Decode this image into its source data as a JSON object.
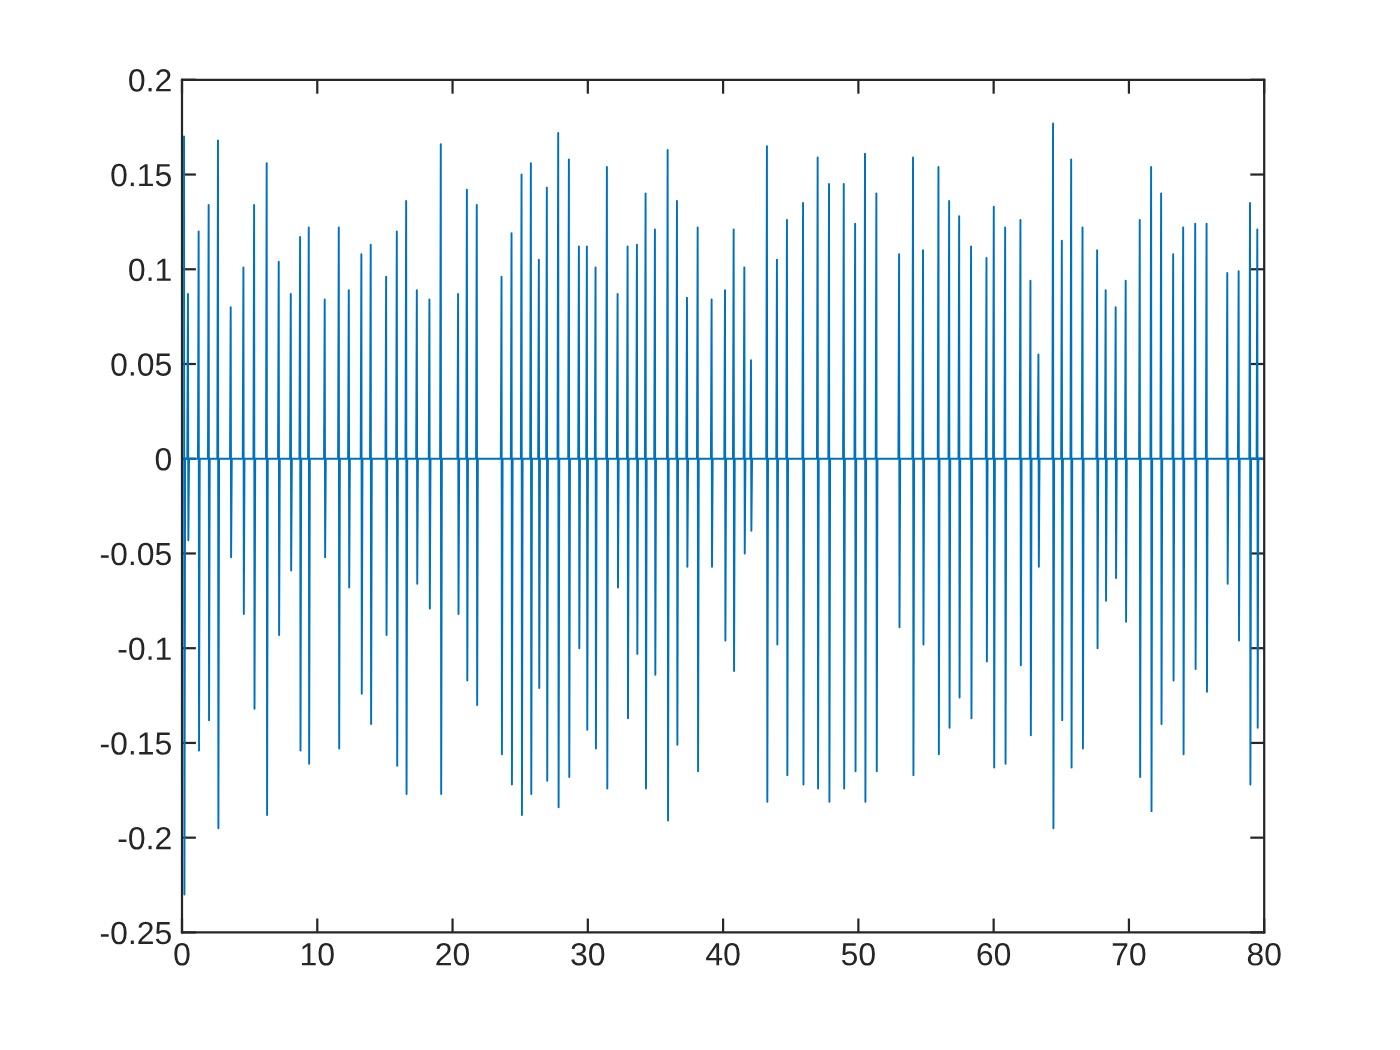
{
  "chart_data": {
    "type": "line",
    "xlim": [
      0,
      80
    ],
    "ylim": [
      -0.25,
      0.2
    ],
    "xticks": [
      0,
      10,
      20,
      30,
      40,
      50,
      60,
      70,
      80
    ],
    "yticks": [
      -0.25,
      -0.2,
      -0.15,
      -0.1,
      -0.05,
      0,
      0.05,
      0.1,
      0.15,
      0.2
    ],
    "grid": false,
    "marker": "none",
    "line_style": "solid",
    "series": [
      {
        "color": "#0072bd",
        "x": [
          0.15,
          0.18,
          0.23,
          0.39,
          0.44,
          0.47,
          0.52,
          1.18,
          1.23,
          1.26,
          1.31,
          1.92,
          1.97,
          2.0,
          2.05,
          2.61,
          2.66,
          2.69,
          2.74,
          3.55,
          3.6,
          3.63,
          3.68,
          4.49,
          4.54,
          4.57,
          4.62,
          5.28,
          5.33,
          5.36,
          5.41,
          6.21,
          6.26,
          6.29,
          6.34,
          7.1,
          7.15,
          7.18,
          7.23,
          7.99,
          8.04,
          8.07,
          8.12,
          8.68,
          8.73,
          8.76,
          8.81,
          9.32,
          9.37,
          9.4,
          9.45,
          10.5,
          10.55,
          10.58,
          10.63,
          11.54,
          11.59,
          11.62,
          11.67,
          12.28,
          12.33,
          12.36,
          12.41,
          13.21,
          13.26,
          13.29,
          13.34,
          13.9,
          13.95,
          13.98,
          14.03,
          15.04,
          15.09,
          15.12,
          15.17,
          15.83,
          15.88,
          15.91,
          15.96,
          16.52,
          16.57,
          16.6,
          16.65,
          17.31,
          17.36,
          17.39,
          17.44,
          18.24,
          18.29,
          18.32,
          18.37,
          19.08,
          19.13,
          19.16,
          19.21,
          20.36,
          20.41,
          20.44,
          20.49,
          21.01,
          21.06,
          21.09,
          21.14,
          21.74,
          21.79,
          21.82,
          21.87,
          23.57,
          23.62,
          23.65,
          23.7,
          24.31,
          24.36,
          24.39,
          24.44,
          25.05,
          25.1,
          25.13,
          25.18,
          25.74,
          25.79,
          25.82,
          25.87,
          26.33,
          26.38,
          26.41,
          26.46,
          26.92,
          26.97,
          27.0,
          27.05,
          27.76,
          27.81,
          27.84,
          27.89,
          28.55,
          28.6,
          28.63,
          28.68,
          29.29,
          29.34,
          29.37,
          29.42,
          29.88,
          29.93,
          29.96,
          30.01,
          30.52,
          30.57,
          30.6,
          30.65,
          31.36,
          31.41,
          31.44,
          31.49,
          32.15,
          32.2,
          32.23,
          32.28,
          32.89,
          32.94,
          32.97,
          33.02,
          33.58,
          33.63,
          33.66,
          33.71,
          34.22,
          34.27,
          34.3,
          34.35,
          34.91,
          34.96,
          34.99,
          35.04,
          35.85,
          35.9,
          35.93,
          35.98,
          36.54,
          36.59,
          36.62,
          36.67,
          37.28,
          37.33,
          37.36,
          37.41,
          38.07,
          38.12,
          38.15,
          38.2,
          39.1,
          39.15,
          39.18,
          39.23,
          40.09,
          40.14,
          40.17,
          40.22,
          40.73,
          40.78,
          40.81,
          40.86,
          41.52,
          41.57,
          41.6,
          41.65,
          42.01,
          42.06,
          42.09,
          42.14,
          43.19,
          43.24,
          43.27,
          43.32,
          43.93,
          43.98,
          44.01,
          44.06,
          44.67,
          44.72,
          44.75,
          44.8,
          45.86,
          45.91,
          45.94,
          45.99,
          46.94,
          46.99,
          47.02,
          47.07,
          47.78,
          47.83,
          47.86,
          47.91,
          48.87,
          48.92,
          48.95,
          49.0,
          49.71,
          49.76,
          49.79,
          49.84,
          50.44,
          50.49,
          50.52,
          50.57,
          51.28,
          51.33,
          51.36,
          51.41,
          52.96,
          53.01,
          53.04,
          53.09,
          53.99,
          54.04,
          54.07,
          54.12,
          54.73,
          54.78,
          54.81,
          54.86,
          55.87,
          55.92,
          55.95,
          56.0,
          56.66,
          56.71,
          56.74,
          56.79,
          57.4,
          57.45,
          57.48,
          57.53,
          58.28,
          58.33,
          58.36,
          58.41,
          59.42,
          59.47,
          59.5,
          59.55,
          59.96,
          60.01,
          60.04,
          60.09,
          60.8,
          60.85,
          60.88,
          60.93,
          61.93,
          61.98,
          62.01,
          62.06,
          62.67,
          62.72,
          62.75,
          62.8,
          63.26,
          63.31,
          63.34,
          63.39,
          64.34,
          64.39,
          64.42,
          64.47,
          64.99,
          65.04,
          65.07,
          65.12,
          65.68,
          65.73,
          65.76,
          65.81,
          66.52,
          66.57,
          66.6,
          66.65,
          67.6,
          67.65,
          67.68,
          67.73,
          68.23,
          68.28,
          68.31,
          68.36,
          68.97,
          69.02,
          69.05,
          69.1,
          69.71,
          69.76,
          69.79,
          69.84,
          70.75,
          70.8,
          70.83,
          70.88,
          71.59,
          71.64,
          71.67,
          71.72,
          72.33,
          72.38,
          72.41,
          72.46,
          73.22,
          73.27,
          73.3,
          73.35,
          73.96,
          74.01,
          74.04,
          74.09,
          74.85,
          74.9,
          74.93,
          74.98,
          75.69,
          75.74,
          75.77,
          75.82,
          77.22,
          77.27,
          77.3,
          77.35,
          78.06,
          78.11,
          78.14,
          78.19,
          78.9,
          78.95,
          78.98,
          79.03,
          79.44,
          79.49,
          79.52,
          79.57,
          80
        ],
        "values": [
          0.17,
          -0.23,
          0,
          0,
          0.087,
          -0.043,
          0,
          0,
          0.12,
          -0.154,
          0,
          0,
          0.134,
          -0.138,
          0,
          0,
          0.168,
          -0.195,
          0,
          0,
          0.08,
          -0.052,
          0,
          0,
          0.101,
          -0.082,
          0,
          0,
          0.134,
          -0.132,
          0,
          0,
          0.156,
          -0.188,
          0,
          0,
          0.104,
          -0.093,
          0,
          0,
          0.087,
          -0.059,
          0,
          0,
          0.117,
          -0.154,
          0,
          0,
          0.122,
          -0.161,
          0,
          0,
          0.084,
          -0.052,
          0,
          0,
          0.122,
          -0.153,
          0,
          0,
          0.089,
          -0.068,
          0,
          0,
          0.108,
          -0.124,
          0,
          0,
          0.113,
          -0.14,
          0,
          0,
          0.096,
          -0.093,
          0,
          0,
          0.12,
          -0.162,
          0,
          0,
          0.136,
          -0.177,
          0,
          0,
          0.089,
          -0.066,
          0,
          0,
          0.084,
          -0.079,
          0,
          0,
          0.166,
          -0.177,
          0,
          0,
          0.087,
          -0.082,
          0,
          0,
          0.142,
          -0.117,
          0,
          0,
          0.134,
          -0.13,
          0,
          0,
          0.096,
          -0.156,
          0,
          0,
          0.119,
          -0.172,
          0,
          0,
          0.15,
          -0.188,
          0,
          0,
          0.156,
          -0.177,
          0,
          0,
          0.105,
          -0.121,
          0,
          0,
          0.143,
          -0.17,
          0,
          0,
          0.172,
          -0.184,
          0,
          0,
          0.158,
          -0.168,
          0,
          0,
          0.112,
          -0.1,
          0,
          0,
          0.112,
          -0.143,
          0,
          0,
          0.101,
          -0.153,
          0,
          0,
          0.154,
          -0.174,
          0,
          0,
          0.087,
          -0.068,
          0,
          0,
          0.112,
          -0.137,
          0,
          0,
          0.113,
          -0.103,
          0,
          0,
          0.14,
          -0.174,
          0,
          0,
          0.121,
          -0.114,
          0,
          0,
          0.163,
          -0.191,
          0,
          0,
          0.136,
          -0.151,
          0,
          0,
          0.085,
          -0.057,
          0,
          0,
          0.122,
          -0.165,
          0,
          0,
          0.084,
          -0.057,
          0,
          0,
          0.089,
          -0.096,
          0,
          0,
          0.121,
          -0.112,
          0,
          0,
          0.101,
          -0.05,
          0,
          0,
          0.052,
          -0.038,
          0,
          0,
          0.165,
          -0.181,
          0,
          0,
          0.105,
          -0.098,
          0,
          0,
          0.126,
          -0.167,
          0,
          0,
          0.135,
          -0.172,
          0,
          0,
          0.159,
          -0.174,
          0,
          0,
          0.145,
          -0.181,
          0,
          0,
          0.145,
          -0.174,
          0,
          0,
          0.124,
          -0.165,
          0,
          0,
          0.161,
          -0.181,
          0,
          0,
          0.14,
          -0.165,
          0,
          0,
          0.108,
          -0.089,
          0,
          0,
          0.159,
          -0.167,
          0,
          0,
          0.11,
          -0.098,
          0,
          0,
          0.154,
          -0.156,
          0,
          0,
          0.136,
          -0.142,
          0,
          0,
          0.128,
          -0.126,
          0,
          0,
          0.112,
          -0.137,
          0,
          0,
          0.106,
          -0.107,
          0,
          0,
          0.133,
          -0.163,
          0,
          0,
          0.122,
          -0.161,
          0,
          0,
          0.126,
          -0.109,
          0,
          0,
          0.094,
          -0.146,
          0,
          0,
          0.055,
          -0.057,
          0,
          0,
          0.177,
          -0.195,
          0,
          0,
          0.115,
          -0.138,
          0,
          0,
          0.158,
          -0.163,
          0,
          0,
          0.122,
          -0.153,
          0,
          0,
          0.11,
          -0.1,
          0,
          0,
          0.089,
          -0.075,
          0,
          0,
          0.08,
          -0.063,
          0,
          0,
          0.094,
          -0.086,
          0,
          0,
          0.126,
          -0.168,
          0,
          0,
          0.154,
          -0.186,
          0,
          0,
          0.14,
          -0.14,
          0,
          0,
          0.108,
          -0.117,
          0,
          0,
          0.122,
          -0.156,
          0,
          0,
          0.124,
          -0.111,
          0,
          0,
          0.124,
          -0.123,
          0,
          0,
          0.098,
          -0.066,
          0,
          0,
          0.099,
          -0.096,
          0,
          0,
          0.135,
          -0.172,
          0,
          0,
          0.121,
          -0.142,
          0,
          0
        ]
      }
    ]
  }
}
